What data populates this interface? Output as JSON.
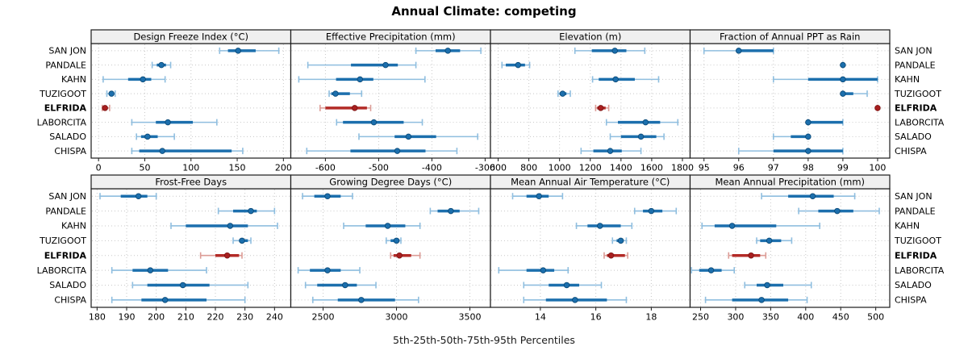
{
  "title": "Annual Climate: competing",
  "footer": "5th-25th-50th-75th-95th Percentiles",
  "stations": [
    "SAN JON",
    "PANDALE",
    "KAHN",
    "TUZIGOOT",
    "ELFRIDA",
    "LABORCITA",
    "SALADO",
    "CHISPA"
  ],
  "highlight_station": "ELFRIDA",
  "percentile_labels": [
    "5th",
    "25th",
    "50th",
    "75th",
    "95th"
  ],
  "colors": {
    "normal_main": "#1C6FAD",
    "normal_light": "#8FBEDF",
    "normal_dot": "#1C6FAD",
    "normal_dot_stroke": "#0B4A78",
    "highlight_main": "#B32B27",
    "highlight_light": "#DC9C96",
    "highlight_dot": "#A81F1F",
    "highlight_dot_stroke": "#7E1414",
    "grid": "#C8C8C8",
    "border": "#1A1A1A",
    "header_bg": "#F0F0F0",
    "text": "#000000"
  },
  "chart_data": [
    {
      "type": "dotplot-interval",
      "title": "Design Freeze Index (°C)",
      "xlim": [
        -8,
        208
      ],
      "ticks": [
        0,
        50,
        100,
        150,
        200
      ],
      "series": [
        {
          "name": "SAN JON",
          "values": [
            131,
            140,
            151,
            170,
            195
          ]
        },
        {
          "name": "PANDALE",
          "values": [
            58,
            63,
            68,
            73,
            78
          ]
        },
        {
          "name": "KAHN",
          "values": [
            5,
            32,
            48,
            57,
            72
          ]
        },
        {
          "name": "TUZIGOOT",
          "values": [
            9,
            12,
            14,
            16,
            18
          ]
        },
        {
          "name": "ELFRIDA",
          "values": [
            4,
            5,
            7,
            9,
            12
          ]
        },
        {
          "name": "LABORCITA",
          "values": [
            36,
            62,
            75,
            102,
            128
          ]
        },
        {
          "name": "SALADO",
          "values": [
            41,
            46,
            53,
            64,
            82
          ]
        },
        {
          "name": "CHISPA",
          "values": [
            36,
            44,
            69,
            144,
            156
          ]
        }
      ]
    },
    {
      "type": "dotplot-interval",
      "title": "Effective Precipitation (mm)",
      "xlim": [
        -665,
        -290
      ],
      "ticks": [
        -600,
        -500,
        -400,
        -300
      ],
      "series": [
        {
          "name": "SAN JON",
          "values": [
            -430,
            -393,
            -370,
            -347,
            -308
          ]
        },
        {
          "name": "PANDALE",
          "values": [
            -633,
            -552,
            -487,
            -464,
            -430
          ]
        },
        {
          "name": "KAHN",
          "values": [
            -650,
            -580,
            -535,
            -510,
            -413
          ]
        },
        {
          "name": "TUZIGOOT",
          "values": [
            -593,
            -589,
            -581,
            -554,
            -532
          ]
        },
        {
          "name": "ELFRIDA",
          "values": [
            -610,
            -600,
            -545,
            -522,
            -515
          ]
        },
        {
          "name": "LABORCITA",
          "values": [
            -579,
            -567,
            -509,
            -453,
            -418
          ]
        },
        {
          "name": "SALADO",
          "values": [
            -537,
            -470,
            -444,
            -392,
            -314
          ]
        },
        {
          "name": "CHISPA",
          "values": [
            -635,
            -553,
            -465,
            -412,
            -353
          ]
        }
      ]
    },
    {
      "type": "dotplot-interval",
      "title": "Elevation (m)",
      "xlim": [
        550,
        1850
      ],
      "ticks": [
        600,
        800,
        1000,
        1200,
        1400,
        1600,
        1800
      ],
      "series": [
        {
          "name": "SAN JON",
          "values": [
            1100,
            1210,
            1360,
            1435,
            1555
          ]
        },
        {
          "name": "PANDALE",
          "values": [
            625,
            650,
            730,
            775,
            805
          ]
        },
        {
          "name": "KAHN",
          "values": [
            1215,
            1255,
            1365,
            1490,
            1645
          ]
        },
        {
          "name": "TUZIGOOT",
          "values": [
            990,
            1000,
            1020,
            1045,
            1070
          ]
        },
        {
          "name": "ELFRIDA",
          "values": [
            1235,
            1245,
            1268,
            1300,
            1320
          ]
        },
        {
          "name": "LABORCITA",
          "values": [
            1305,
            1380,
            1560,
            1655,
            1770
          ]
        },
        {
          "name": "SALADO",
          "values": [
            1330,
            1400,
            1530,
            1630,
            1680
          ]
        },
        {
          "name": "CHISPA",
          "values": [
            1140,
            1220,
            1330,
            1405,
            1530
          ]
        }
      ]
    },
    {
      "type": "dotplot-interval",
      "title": "Fraction of Annual PPT as Rain",
      "xlim": [
        94.6,
        100.35
      ],
      "ticks": [
        95,
        96,
        97,
        98,
        99,
        100
      ],
      "series": [
        {
          "name": "SAN JON",
          "values": [
            95,
            96,
            96,
            97,
            97
          ]
        },
        {
          "name": "PANDALE",
          "values": [
            99,
            99,
            99,
            99,
            99
          ]
        },
        {
          "name": "KAHN",
          "values": [
            97,
            98,
            99,
            100,
            100
          ]
        },
        {
          "name": "TUZIGOOT",
          "values": [
            99,
            99,
            99,
            99.3,
            99.7
          ]
        },
        {
          "name": "ELFRIDA",
          "values": [
            100,
            100,
            100,
            100,
            100
          ]
        },
        {
          "name": "LABORCITA",
          "values": [
            98,
            98,
            98,
            99,
            99
          ]
        },
        {
          "name": "SALADO",
          "values": [
            97,
            97.5,
            98,
            98,
            98
          ]
        },
        {
          "name": "CHISPA",
          "values": [
            96,
            97,
            98,
            99,
            99
          ]
        }
      ]
    },
    {
      "type": "dotplot-interval",
      "title": "Frost-Free Days",
      "xlim": [
        178,
        245.5
      ],
      "ticks": [
        180,
        190,
        200,
        210,
        220,
        230,
        240
      ],
      "series": [
        {
          "name": "SAN JON",
          "values": [
            181,
            188,
            194,
            197,
            200
          ]
        },
        {
          "name": "PANDALE",
          "values": [
            221,
            226,
            232,
            234,
            240
          ]
        },
        {
          "name": "KAHN",
          "values": [
            205,
            210,
            225,
            231,
            241
          ]
        },
        {
          "name": "TUZIGOOT",
          "values": [
            226,
            228,
            229,
            231,
            232
          ]
        },
        {
          "name": "ELFRIDA",
          "values": [
            215,
            220,
            224,
            228,
            229
          ]
        },
        {
          "name": "LABORCITA",
          "values": [
            185,
            192,
            198,
            204,
            217
          ]
        },
        {
          "name": "SALADO",
          "values": [
            192,
            197,
            209,
            218,
            231
          ]
        },
        {
          "name": "CHISPA",
          "values": [
            185,
            195,
            203,
            217,
            230
          ]
        }
      ]
    },
    {
      "type": "dotplot-interval",
      "title": "Growing Degree Days (°C)",
      "xlim": [
        2280,
        3640
      ],
      "ticks": [
        2500,
        3000,
        3500
      ],
      "series": [
        {
          "name": "SAN JON",
          "values": [
            2360,
            2440,
            2530,
            2620,
            2700
          ]
        },
        {
          "name": "PANDALE",
          "values": [
            3230,
            3280,
            3370,
            3430,
            3560
          ]
        },
        {
          "name": "KAHN",
          "values": [
            2640,
            2790,
            2940,
            3060,
            3160
          ]
        },
        {
          "name": "TUZIGOOT",
          "values": [
            2930,
            2960,
            3000,
            3020,
            3030
          ]
        },
        {
          "name": "ELFRIDA",
          "values": [
            2960,
            2980,
            3020,
            3100,
            3160
          ]
        },
        {
          "name": "LABORCITA",
          "values": [
            2330,
            2410,
            2530,
            2620,
            2750
          ]
        },
        {
          "name": "SALADO",
          "values": [
            2380,
            2460,
            2650,
            2730,
            2860
          ]
        },
        {
          "name": "CHISPA",
          "values": [
            2430,
            2600,
            2760,
            2990,
            3150
          ]
        }
      ]
    },
    {
      "type": "dotplot-interval",
      "title": "Mean Annual Air Temperature (°C)",
      "xlim": [
        12.2,
        19.4
      ],
      "ticks": [
        14,
        16,
        18
      ],
      "series": [
        {
          "name": "SAN JON",
          "values": [
            13.0,
            13.5,
            13.95,
            14.3,
            14.8
          ]
        },
        {
          "name": "PANDALE",
          "values": [
            17.4,
            17.7,
            18.0,
            18.4,
            18.9
          ]
        },
        {
          "name": "KAHN",
          "values": [
            15.3,
            15.7,
            16.15,
            16.9,
            17.3
          ]
        },
        {
          "name": "TUZIGOOT",
          "values": [
            16.6,
            16.75,
            16.9,
            17.0,
            17.1
          ]
        },
        {
          "name": "ELFRIDA",
          "values": [
            16.3,
            16.4,
            16.55,
            17.05,
            17.15
          ]
        },
        {
          "name": "LABORCITA",
          "values": [
            12.5,
            13.5,
            14.1,
            14.5,
            15.0
          ]
        },
        {
          "name": "SALADO",
          "values": [
            13.4,
            14.3,
            14.95,
            15.4,
            16.2
          ]
        },
        {
          "name": "CHISPA",
          "values": [
            13.4,
            14.2,
            15.25,
            16.4,
            17.1
          ]
        }
      ]
    },
    {
      "type": "dotplot-interval",
      "title": "Mean Annual Precipitation (mm)",
      "xlim": [
        235,
        520
      ],
      "ticks": [
        250,
        300,
        350,
        400,
        450,
        500
      ],
      "series": [
        {
          "name": "SAN JON",
          "values": [
            337,
            375,
            410,
            440,
            470
          ]
        },
        {
          "name": "PANDALE",
          "values": [
            390,
            418,
            445,
            468,
            505
          ]
        },
        {
          "name": "KAHN",
          "values": [
            252,
            270,
            295,
            358,
            420
          ]
        },
        {
          "name": "TUZIGOOT",
          "values": [
            330,
            335,
            348,
            365,
            380
          ]
        },
        {
          "name": "ELFRIDA",
          "values": [
            290,
            295,
            322,
            335,
            343
          ]
        },
        {
          "name": "LABORCITA",
          "values": [
            237,
            248,
            265,
            280,
            298
          ]
        },
        {
          "name": "SALADO",
          "values": [
            313,
            330,
            345,
            368,
            408
          ]
        },
        {
          "name": "CHISPA",
          "values": [
            257,
            295,
            337,
            375,
            402
          ]
        }
      ]
    }
  ]
}
